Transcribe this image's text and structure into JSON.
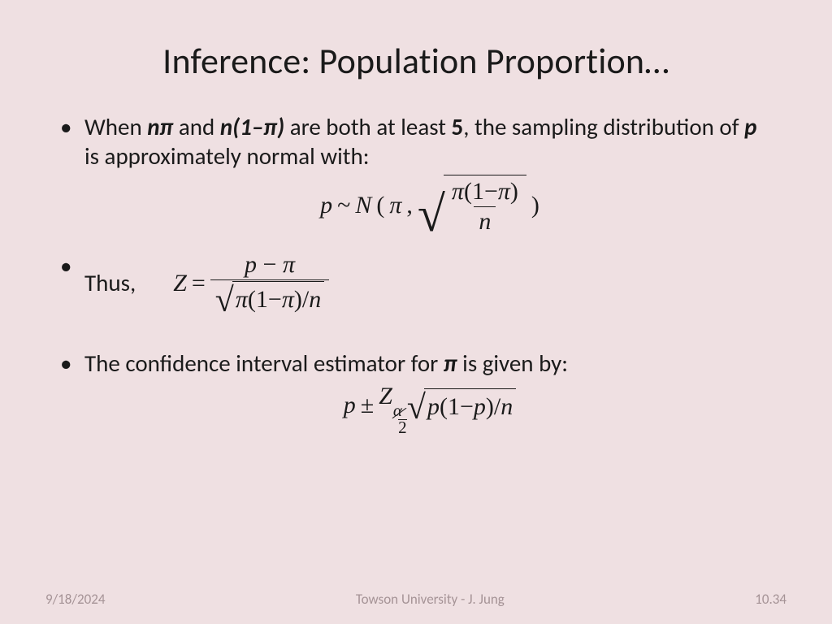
{
  "background_color": "#efe0e2",
  "text_color": "#1a1a1a",
  "footer_color": "#a59396",
  "title": "Inference: Population Proportion…",
  "title_fontsize": 44,
  "body_fontsize": 29,
  "formula_font": "Times New Roman",
  "bullets": {
    "b1": {
      "t1": "When ",
      "t2": "nπ",
      "t3": " and ",
      "t4": "n(1–π)",
      "t5": " are both at least ",
      "t6": "5",
      "t7": ", the sampling distribution of ",
      "t8": "p",
      "t9": " is approximately normal with:"
    },
    "b2": {
      "t1": "Thus,"
    },
    "b3": {
      "t1": "The confidence interval estimator for ",
      "t2": "π",
      "t3": " is given by:"
    }
  },
  "formulas": {
    "f1": {
      "p": "p",
      "tilde": "~",
      "N": "N",
      "lp": "(",
      "pi": "π",
      "comma": ",",
      "num_pi": "π",
      "num_lp": "(",
      "num_one": "1",
      "num_minus": "−",
      "num_pi2": "π",
      "num_rp": ")",
      "den_n": "n",
      "rp": ")"
    },
    "f2": {
      "Z": "Z",
      "eq": "=",
      "num_p": "p",
      "num_minus": "−",
      "num_pi": "π",
      "den_pi": "π",
      "den_lp": "(",
      "den_one": "1",
      "den_minus": "−",
      "den_pi2": "π",
      "den_rp": ")",
      "den_slash": "/",
      "den_n": "n"
    },
    "f3": {
      "p": "p",
      "pm": "±",
      "Z": "Z",
      "alpha": "α",
      "two": "2",
      "rad_p": "p",
      "rad_lp": "(",
      "rad_one": "1",
      "rad_minus": "−",
      "rad_p2": "p",
      "rad_rp": ")",
      "rad_slash": "/",
      "rad_n": "n"
    }
  },
  "footer": {
    "date": "9/18/2024",
    "center": "Towson University - J. Jung",
    "page": "10.34"
  }
}
